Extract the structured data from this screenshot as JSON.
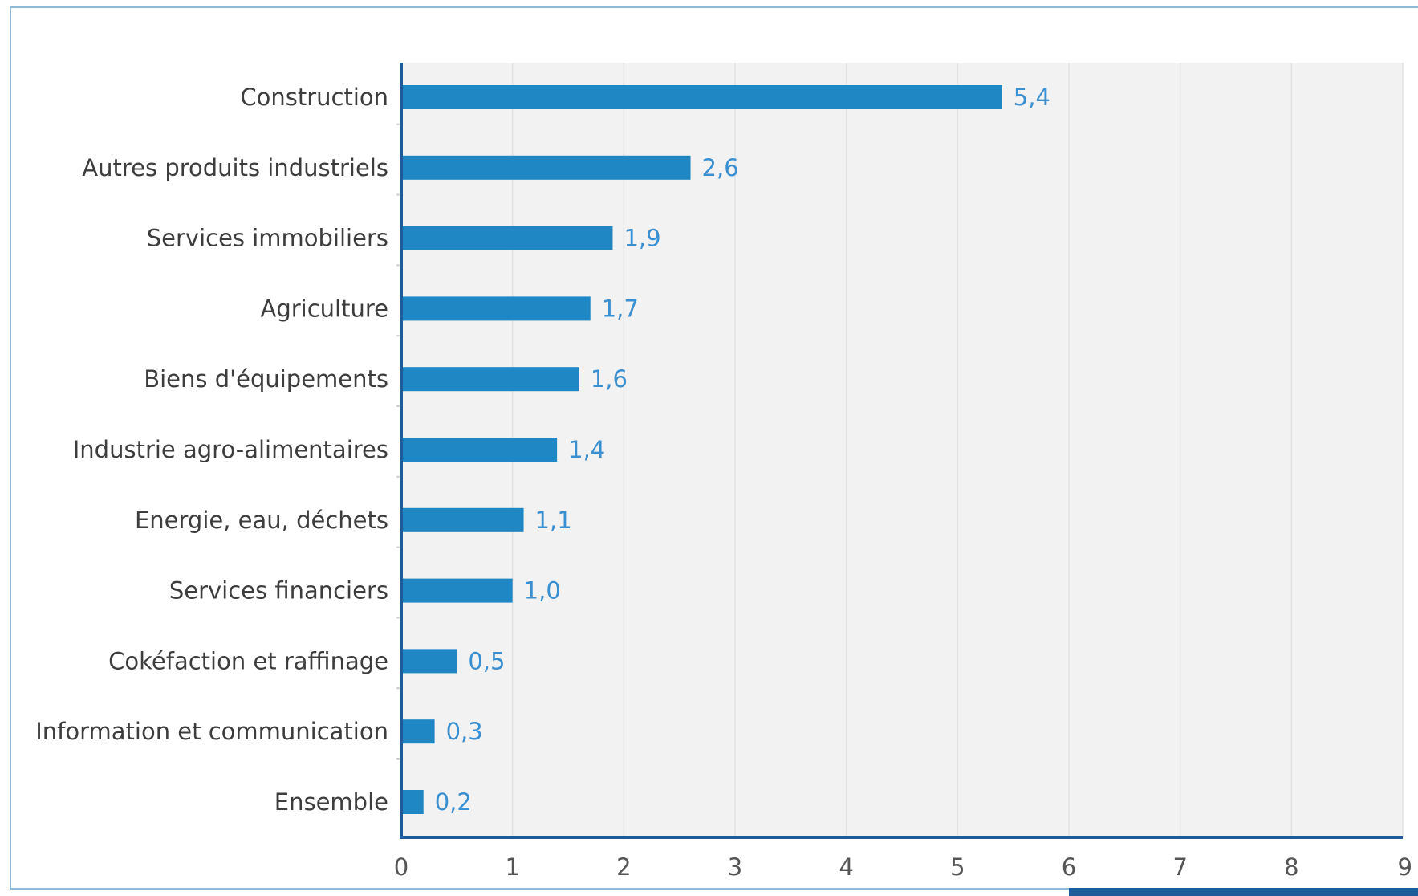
{
  "chart_data": {
    "type": "bar",
    "orientation": "horizontal",
    "categories": [
      "Construction",
      "Autres produits industriels",
      "Services immobiliers",
      "Agriculture",
      "Biens d'équipements",
      "Industrie agro-alimentaires",
      "Energie, eau, déchets",
      "Services financiers",
      "Cokéfaction et raffinage",
      "Information et communication",
      "Ensemble"
    ],
    "values": [
      5.4,
      2.6,
      1.9,
      1.7,
      1.6,
      1.4,
      1.1,
      1.0,
      0.5,
      0.3,
      0.2
    ],
    "value_labels": [
      "5,4",
      "2,6",
      "1,9",
      "1,7",
      "1,6",
      "1,4",
      "1,1",
      "1,0",
      "0,5",
      "0,3",
      "0,2"
    ],
    "xlim": [
      0,
      9
    ],
    "x_ticks": [
      "0",
      "1",
      "2",
      "3",
      "4",
      "5",
      "6",
      "7",
      "8",
      "9"
    ],
    "title": "",
    "xlabel": "",
    "ylabel": "",
    "grid": "vertical",
    "legend": "none",
    "colors": {
      "bar": "#1f87c4",
      "value_label": "#3a8fd0",
      "axis": "#1d5b9a",
      "plot_background": "#f2f2f2",
      "gridline": "#e2e2e2",
      "category_label": "#3d3d3d",
      "tick_label": "#555555",
      "frame_border": "#8fb9d8",
      "bottom_band": "#1d5b9a"
    }
  }
}
